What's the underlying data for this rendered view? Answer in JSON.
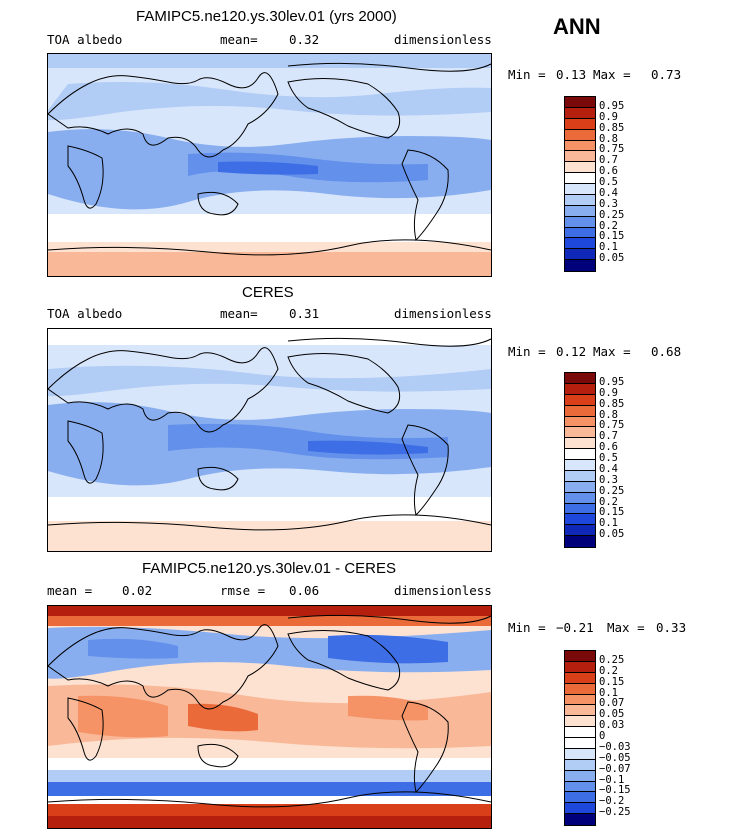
{
  "season": "ANN",
  "panels": [
    {
      "title": "FAMIPC5.ne120.ys.30lev.01 (yrs 2000)",
      "left_label": "TOA albedo",
      "mid_label": "mean=",
      "mid_value": "0.32",
      "right_label": "dimensionless",
      "min_label": "Min =",
      "min_value": "0.13",
      "max_label": "Max =",
      "max_value": "0.73",
      "colorbar_levels": [
        "0.95",
        "0.9",
        "0.85",
        "0.8",
        "0.75",
        "0.7",
        "0.6",
        "0.5",
        "0.4",
        "0.3",
        "0.25",
        "0.2",
        "0.15",
        "0.1",
        "0.05"
      ]
    },
    {
      "title": "CERES",
      "left_label": "TOA albedo",
      "mid_label": "mean=",
      "mid_value": "0.31",
      "right_label": "dimensionless",
      "min_label": "Min =",
      "min_value": "0.12",
      "max_label": "Max =",
      "max_value": "0.68",
      "colorbar_levels": [
        "0.95",
        "0.9",
        "0.85",
        "0.8",
        "0.75",
        "0.7",
        "0.6",
        "0.5",
        "0.4",
        "0.3",
        "0.25",
        "0.2",
        "0.15",
        "0.1",
        "0.05"
      ]
    },
    {
      "title": "FAMIPC5.ne120.ys.30lev.01 - CERES",
      "left_label": "mean =",
      "left_value": "0.02",
      "mid_label": "rmse =",
      "mid_value": "0.06",
      "right_label": "dimensionless",
      "min_label": "Min =",
      "min_value": "−0.21",
      "max_label": "Max =",
      "max_value": "0.33",
      "colorbar_levels": [
        "0.25",
        "0.2",
        "0.15",
        "0.1",
        "0.07",
        "0.05",
        "0.03",
        "0",
        "−0.03",
        "−0.05",
        "−0.07",
        "−0.1",
        "−0.15",
        "−0.2",
        "−0.25"
      ]
    }
  ],
  "colors": {
    "abs_scale": [
      "#7a0a0a",
      "#b5200e",
      "#d9401a",
      "#ea6a3a",
      "#f59367",
      "#f9b999",
      "#fde2d2",
      "#ffffff",
      "#d8e6fb",
      "#b1ccf5",
      "#89aef0",
      "#6290ea",
      "#3d6ee6",
      "#1e48dc",
      "#0f28b8",
      "#00007a"
    ],
    "diff_scale": [
      "#7a0a0a",
      "#b5200e",
      "#d9401a",
      "#ea6a3a",
      "#f59367",
      "#f9b999",
      "#fde2d2",
      "#ffffff",
      "#ffffff",
      "#d8e6fb",
      "#b1ccf5",
      "#89aef0",
      "#6290ea",
      "#3d6ee6",
      "#1e48dc",
      "#00007a"
    ],
    "coast": "#000000"
  }
}
